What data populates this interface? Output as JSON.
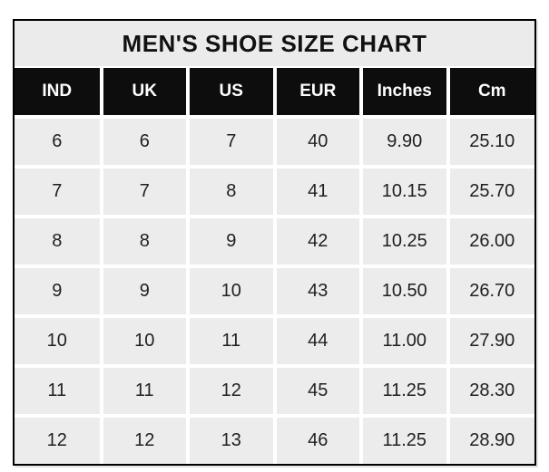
{
  "chart_data": {
    "type": "table",
    "title": "MEN'S SHOE SIZE CHART",
    "columns": [
      "IND",
      "UK",
      "US",
      "EUR",
      "Inches",
      "Cm"
    ],
    "rows": [
      [
        "6",
        "6",
        "7",
        "40",
        "9.90",
        "25.10"
      ],
      [
        "7",
        "7",
        "8",
        "41",
        "10.15",
        "25.70"
      ],
      [
        "8",
        "8",
        "9",
        "42",
        "10.25",
        "26.00"
      ],
      [
        "9",
        "9",
        "10",
        "43",
        "10.50",
        "26.70"
      ],
      [
        "10",
        "10",
        "11",
        "44",
        "11.00",
        "27.90"
      ],
      [
        "11",
        "11",
        "12",
        "45",
        "11.25",
        "28.30"
      ],
      [
        "12",
        "12",
        "13",
        "46",
        "11.25",
        "28.90"
      ]
    ]
  },
  "colors": {
    "title_bg": "#ebebeb",
    "header_bg": "#0d0d0d",
    "header_text": "#ffffff",
    "cell_bg": "#ececec",
    "cell_text": "#1f1f1f",
    "gutter": "#ffffff",
    "frame": "#000000"
  }
}
